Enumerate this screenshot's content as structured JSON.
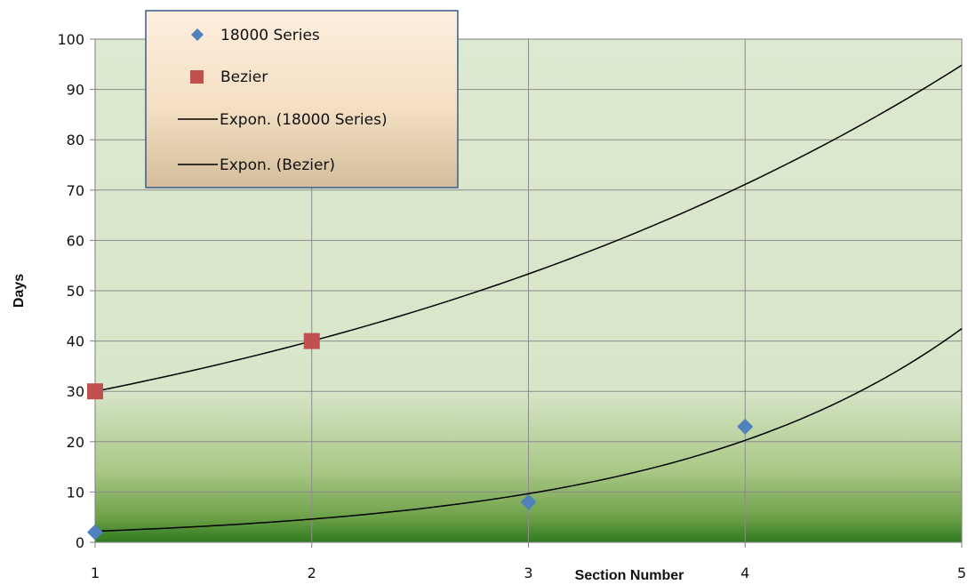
{
  "chart_data": {
    "type": "scatter",
    "xlabel": "Section Number",
    "ylabel": "Days",
    "xlim": [
      1,
      5
    ],
    "ylim": [
      0,
      100
    ],
    "xticks": [
      1,
      2,
      3,
      4,
      5
    ],
    "yticks": [
      0,
      10,
      20,
      30,
      40,
      50,
      60,
      70,
      80,
      90,
      100
    ],
    "grid": true,
    "legend_position": "top-left",
    "series": [
      {
        "name": "18000 Series",
        "marker": "diamond",
        "color": "#4f81bd",
        "points": [
          [
            1,
            2
          ],
          [
            3,
            8
          ],
          [
            4,
            23
          ]
        ]
      },
      {
        "name": "Bezier",
        "marker": "square",
        "color": "#c0504d",
        "points": [
          [
            1,
            30
          ],
          [
            2,
            40
          ]
        ]
      }
    ],
    "trendlines": [
      {
        "name": "Expon. (18000 Series)",
        "type": "exponential",
        "color": "#000000",
        "a": 1.05,
        "b": 0.74,
        "x_range": [
          1,
          5
        ]
      },
      {
        "name": "Expon. (Bezier)",
        "type": "exponential",
        "color": "#000000",
        "a": 22.5,
        "b": 0.2877,
        "x_range": [
          1,
          5
        ]
      }
    ],
    "legend": [
      {
        "label": "18000 Series",
        "kind": "diamond",
        "color": "#4f81bd"
      },
      {
        "label": "Bezier",
        "kind": "square",
        "color": "#c0504d"
      },
      {
        "label": "Expon. (18000 Series)",
        "kind": "line",
        "color": "#000000"
      },
      {
        "label": "Expon. (Bezier)",
        "kind": "line",
        "color": "#000000"
      }
    ]
  }
}
